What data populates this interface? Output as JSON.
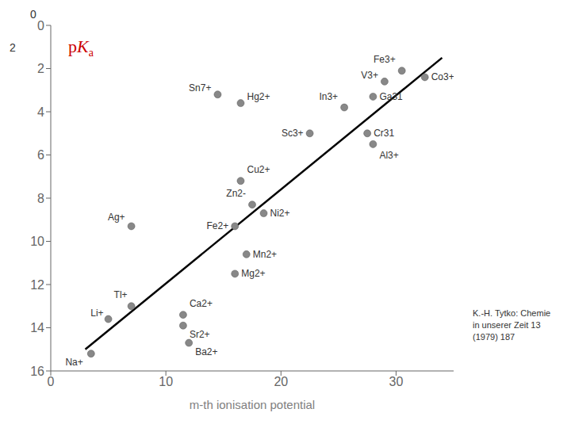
{
  "chart_data": {
    "type": "scatter",
    "x_label": "m-th ionisation potential",
    "xlim": [
      0,
      35
    ],
    "ylim": [
      16,
      0
    ],
    "xticks": [
      0,
      10,
      20,
      30
    ],
    "yticks": [
      0,
      2,
      4,
      6,
      8,
      10,
      12,
      14,
      16
    ],
    "grid": false,
    "series": [
      {
        "type": "line",
        "color": "#000000",
        "x": [
          3,
          34
        ],
        "values": [
          15.0,
          1.5
        ]
      },
      {
        "type": "scatter",
        "color": "#888888",
        "x": [
          3.5,
          5.0,
          7.0,
          7.0,
          11.5,
          11.5,
          12.0,
          16.0,
          17.0,
          16.0,
          18.5,
          17.5,
          16.5,
          14.5,
          16.5,
          22.5,
          25.5,
          27.5,
          28.0,
          28.0,
          29.0,
          32.5,
          30.5
        ],
        "values": [
          15.2,
          13.6,
          13.0,
          9.3,
          13.4,
          13.9,
          14.7,
          11.5,
          10.6,
          9.3,
          8.7,
          8.3,
          7.2,
          3.2,
          3.6,
          5.0,
          3.8,
          5.0,
          5.5,
          3.3,
          2.6,
          2.4,
          2.1
        ],
        "labels": [
          "Na+",
          "Li+",
          "Tl+",
          "Ag+",
          "Ca2+",
          "Sr2+",
          "Ba2+",
          "Mg2+",
          "Mn2+",
          "Fe2+",
          "Ni2+",
          "Zn2-",
          "Cu2+",
          "Sn7+",
          "Hg2+",
          "Sc3+",
          "In3+",
          "Cr31",
          "Al3+",
          "Ga31",
          "V3+",
          "Co3+",
          "Fe3+"
        ]
      }
    ],
    "annotations": [
      {
        "text": "pKa",
        "color": "#cc0000"
      },
      {
        "text": "0"
      },
      {
        "text": "2"
      },
      {
        "text": "K.-H. Tytko: Chemie\nin unserer Zeit 13\n(1979) 187"
      }
    ]
  }
}
